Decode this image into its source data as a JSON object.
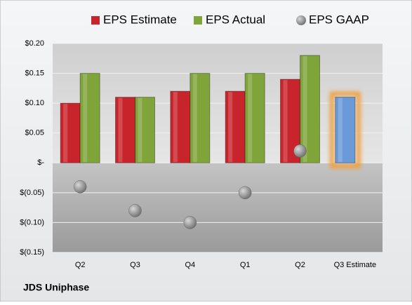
{
  "chart_data": {
    "type": "bar",
    "categories": [
      "Q2",
      "Q3",
      "Q4",
      "Q1",
      "Q2",
      "Q3 Estimate"
    ],
    "series": [
      {
        "name": "EPS Estimate",
        "color": "#c8242b",
        "values": [
          0.1,
          0.11,
          0.12,
          0.12,
          0.14,
          0.11
        ],
        "point_colors": [
          "#c8242b",
          "#c8242b",
          "#c8242b",
          "#c8242b",
          "#c8242b",
          "#6a9ad8"
        ]
      },
      {
        "name": "EPS Actual",
        "color": "#7fa43a",
        "values": [
          0.15,
          0.11,
          0.15,
          0.15,
          0.18,
          null
        ]
      },
      {
        "name": "EPS GAAP",
        "color": "#8c8c8c",
        "type": "scatter",
        "values": [
          -0.04,
          -0.08,
          -0.1,
          -0.05,
          0.02,
          null
        ]
      }
    ],
    "ylim": [
      -0.15,
      0.2
    ],
    "yticks": [
      {
        "value": -0.15,
        "label": "$(0.15)"
      },
      {
        "value": -0.1,
        "label": "$(0.10)"
      },
      {
        "value": -0.05,
        "label": "$(0.05)"
      },
      {
        "value": 0,
        "label": "$-"
      },
      {
        "value": 0.05,
        "label": "$0.05"
      },
      {
        "value": 0.1,
        "label": "$0.10"
      },
      {
        "value": 0.15,
        "label": "$0.15"
      },
      {
        "value": 0.2,
        "label": "$0.20"
      }
    ],
    "grid": true,
    "legend": "top",
    "footer": "JDS Uniphase"
  }
}
